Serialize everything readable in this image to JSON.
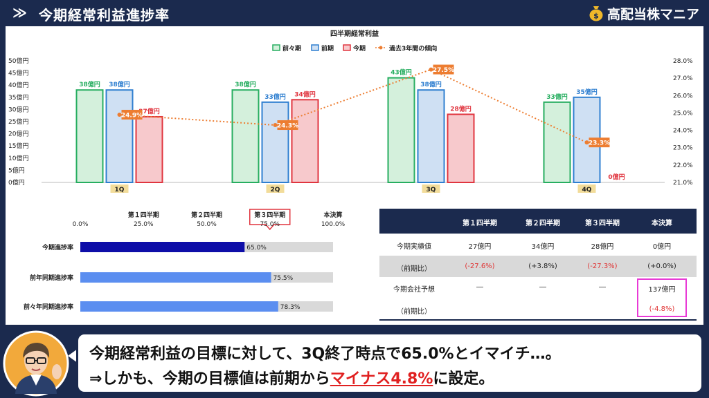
{
  "header": {
    "chevron": "≫",
    "title": "今期経常利益進捗率",
    "brand": "高配当株マニア",
    "brand_icon": "money-bag-icon"
  },
  "colors": {
    "navy": "#1b2a4e",
    "prev2_fill": "#d4f0dc",
    "prev2_stroke": "#27ae60",
    "prev_fill": "#cfe0f3",
    "prev_stroke": "#2f7fd0",
    "cur_fill": "#f7c9cc",
    "cur_stroke": "#e0353f",
    "trend": "#ed7d31",
    "bar_current": "#0e0ea8",
    "bar_light": "#5b8ef0",
    "bar_bg": "#d9d9d9"
  },
  "chart_data": [
    {
      "type": "bar",
      "title": "四半期経常利益",
      "categories": [
        "1Q",
        "2Q",
        "3Q",
        "4Q"
      ],
      "series": [
        {
          "name": "前々期",
          "values": [
            38,
            38,
            43,
            33
          ],
          "labels": [
            "38億円",
            "38億円",
            "43億円",
            "33億円"
          ]
        },
        {
          "name": "前期",
          "values": [
            38,
            33,
            38,
            35
          ],
          "labels": [
            "38億円",
            "33億円",
            "38億円",
            "35億円"
          ]
        },
        {
          "name": "今期",
          "values": [
            27,
            34,
            28,
            0
          ],
          "labels": [
            "27億円",
            "34億円",
            "28億円",
            "0億円"
          ]
        }
      ],
      "line_series": {
        "name": "過去3年間の傾向",
        "values": [
          24.9,
          24.3,
          27.5,
          23.3
        ],
        "labels": [
          "24.9%",
          "24.3%",
          "27.5%",
          "23.3%"
        ]
      },
      "ylim": [
        0,
        50
      ],
      "yticks": [
        "0億円",
        "5億円",
        "10億円",
        "15億円",
        "20億円",
        "25億円",
        "30億円",
        "35億円",
        "40億円",
        "45億円",
        "50億円"
      ],
      "y2lim": [
        21.0,
        28.0
      ],
      "y2ticks": [
        "21.0%",
        "22.0%",
        "23.0%",
        "24.0%",
        "25.0%",
        "26.0%",
        "27.0%",
        "28.0%"
      ],
      "legend_position": "top"
    },
    {
      "type": "bar",
      "orientation": "horizontal",
      "categories": [
        "今期進捗率",
        "前年同期進捗率",
        "前々年同期進捗率"
      ],
      "values": [
        65.0,
        75.5,
        78.3
      ],
      "labels": [
        "65.0%",
        "75.5%",
        "78.3%"
      ],
      "xlim": [
        0,
        100
      ],
      "xticks": [
        "0.0%",
        "25.0%",
        "50.0%",
        "75.0%",
        "100.0%"
      ],
      "markers": [
        "第１四半期",
        "第２四半期",
        "第３四半期",
        "本決算"
      ],
      "highlight_marker": 2
    }
  ],
  "table": {
    "headers": [
      "第１四半期",
      "第２四半期",
      "第３四半期",
      "本決算"
    ],
    "rows": [
      {
        "label": "今期実績値",
        "cells": [
          "27億円",
          "34億円",
          "28億円",
          "0億円"
        ]
      },
      {
        "label": "（前期比）",
        "cells": [
          "(-27.6%)",
          "(+3.8%)",
          "(-27.3%)",
          "(+0.0%)"
        ]
      },
      {
        "label": "今期会社予想",
        "cells": [
          "―",
          "―",
          "―",
          "137億円"
        ]
      },
      {
        "label": "（前期比）",
        "cells": [
          "",
          "",
          "",
          "(-4.8%)"
        ]
      }
    ]
  },
  "bubble": {
    "line1": "今期経常利益の目標に対して、3Q終了時点で65.0%とイマイチ…。",
    "line2_prefix": "⇒しかも、今期の目標値は前期から",
    "line2_highlight": "マイナス4.8%",
    "line2_suffix": "に設定。"
  }
}
